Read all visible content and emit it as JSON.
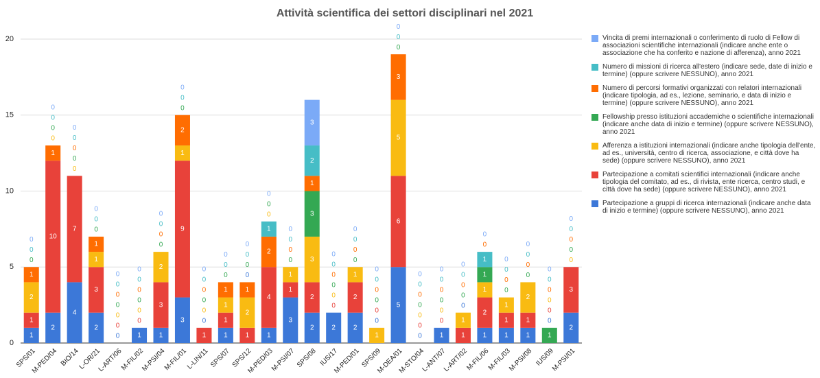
{
  "chart_data": {
    "type": "stacked_bar",
    "title": "Attività scientifica dei settori disciplinari nel 2021",
    "categories": [
      "SPS/01",
      "M-PED/04",
      "BIO/14",
      "L-OR/21",
      "L-ART/06",
      "M-FIL/02",
      "M-PSI/04",
      "M-FIL/01",
      "L-LIN/11",
      "SPS/07",
      "SPS/12",
      "M-PED/03",
      "M-PSI/07",
      "SPS/08",
      "IUS/17",
      "M-PED/01",
      "SPS/09",
      "M-DEA/01",
      "M-STO/04",
      "L-ANT/07",
      "L-ART/02",
      "M-FIL/06",
      "M-FIL/03",
      "M-PSI/08",
      "IUS/09",
      "M-PSI/01"
    ],
    "series": [
      {
        "name": "Partecipazione a gruppi di ricerca internazionali (indicare anche data di inizio e termine) (oppure scrivere NESSUNO), anno 2021",
        "color": "#3c78d8",
        "values": [
          1,
          2,
          4,
          2,
          0,
          1,
          1,
          3,
          0,
          1,
          0,
          1,
          3,
          2,
          2,
          2,
          0,
          5,
          0,
          1,
          0,
          1,
          1,
          1,
          0,
          2
        ]
      },
      {
        "name": "Partecipazione a comitati scientifici internazionali (indicare anche tipologia del comitato, ad es., di rivista, ente ricerca, centro studi, e città dove ha sede) (oppure scrivere NESSUNO), anno 2021",
        "color": "#e8423a",
        "values": [
          1,
          10,
          7,
          3,
          0,
          0,
          3,
          9,
          1,
          1,
          1,
          4,
          1,
          2,
          0,
          2,
          0,
          6,
          0,
          0,
          1,
          2,
          1,
          1,
          0,
          3
        ]
      },
      {
        "name": "Afferenza a istituzioni internazionali (indicare anche tipologia dell'ente, ad es., università, centro di ricerca, associazione, e città dove ha sede) (oppure scrivere NESSUNO), anno 2021",
        "color": "#f9bb12",
        "values": [
          2,
          0,
          0,
          1,
          0,
          0,
          2,
          1,
          0,
          1,
          2,
          0,
          1,
          3,
          0,
          1,
          1,
          5,
          0,
          0,
          1,
          1,
          1,
          2,
          0,
          0
        ]
      },
      {
        "name": "Fellowship presso istituzioni accademiche o scientifiche internazionali (indicare anche data di inizio e termine) (oppure scrivere NESSUNO), anno 2021",
        "color": "#34a853",
        "values": [
          0,
          0,
          0,
          0,
          0,
          0,
          0,
          0,
          0,
          0,
          0,
          0,
          0,
          3,
          0,
          0,
          0,
          0,
          0,
          0,
          0,
          1,
          0,
          0,
          1,
          0
        ]
      },
      {
        "name": "Numero di percorsi formativi organizzati con relatori internazionali (indicare tipologia, ad es., lezione, seminario, e data di inizio e termine) (oppure scrivere NESSUNO), anno 2021",
        "color": "#ff6d01",
        "values": [
          1,
          1,
          0,
          1,
          0,
          0,
          0,
          2,
          0,
          1,
          1,
          2,
          0,
          1,
          0,
          0,
          0,
          3,
          0,
          0,
          0,
          0,
          0,
          0,
          0,
          0
        ]
      },
      {
        "name": "Numero di missioni di ricerca all'estero (indicare sede, date di inizio e termine) (oppure scrivere NESSUNO), anno 2021",
        "color": "#46bdc6",
        "values": [
          0,
          0,
          0,
          0,
          0,
          0,
          0,
          0,
          0,
          0,
          0,
          1,
          0,
          2,
          0,
          0,
          0,
          0,
          0,
          0,
          0,
          1,
          0,
          0,
          0,
          0
        ]
      },
      {
        "name": "Vincita di premi internazionali o conferimento di ruolo di Fellow di associazioni scientifiche internazionali (indicare anche ente o associazione che ha conferito e nazione di afferenza), anno 2021",
        "color": "#7baaf7",
        "values": [
          0,
          0,
          0,
          0,
          0,
          0,
          0,
          0,
          0,
          0,
          0,
          0,
          0,
          3,
          0,
          0,
          0,
          0,
          0,
          0,
          0,
          0,
          0,
          0,
          0,
          0
        ]
      }
    ],
    "ylim": [
      0,
      20
    ],
    "yticks": [
      0,
      5,
      10,
      15,
      20
    ],
    "grid": true,
    "legend": "right"
  }
}
